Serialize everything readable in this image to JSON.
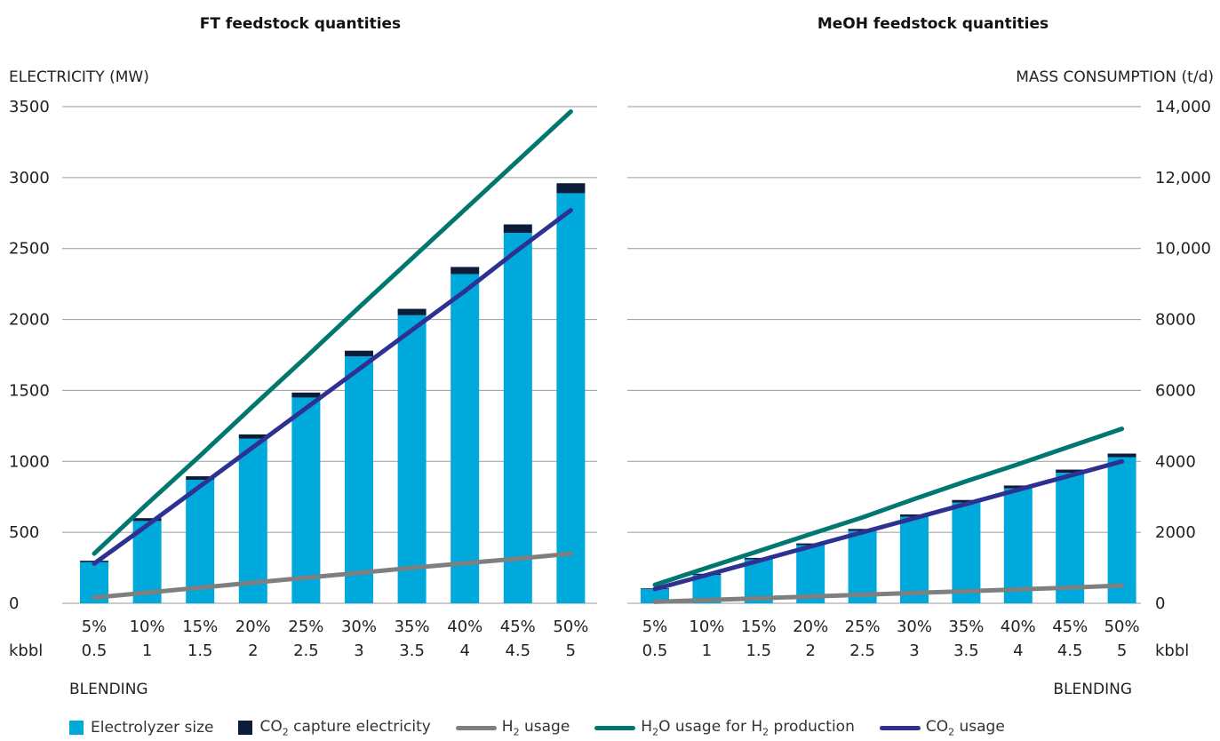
{
  "colors": {
    "electrolyzer": "#00A9DC",
    "co2_capture": "#0B1D3A",
    "h2_usage": "#7F7F7F",
    "h2o_usage": "#00776F",
    "co2_usage": "#2E3192",
    "grid": "#9A9A9A"
  },
  "left_axis_title": "ELECTRICITY  (MW)",
  "right_axis_title": "MASS CONSUMPTION (t/d)",
  "row_label_kbbl": "kbbl",
  "blending_label": "BLENDING",
  "left_ticks": [
    "0",
    "500",
    "1000",
    "1500",
    "2000",
    "2500",
    "3000",
    "3500"
  ],
  "right_ticks": [
    "0",
    "2000",
    "4000",
    "6000",
    "8000",
    "10,000",
    "12,000",
    "14,000"
  ],
  "legend": [
    {
      "id": "electrolyzer",
      "kind": "box",
      "parts": [
        "Electrolyzer size"
      ]
    },
    {
      "id": "co2_capture",
      "kind": "box",
      "parts": [
        "CO",
        "2",
        " capture electricity"
      ]
    },
    {
      "id": "h2_usage",
      "kind": "line",
      "parts": [
        "H",
        "2",
        " usage"
      ]
    },
    {
      "id": "h2o_usage",
      "kind": "line",
      "parts": [
        "H",
        "2",
        "O usage for H",
        "2",
        " production"
      ]
    },
    {
      "id": "co2_usage",
      "kind": "line",
      "parts": [
        "CO",
        "2",
        " usage"
      ]
    }
  ],
  "chart_data": [
    {
      "type": "bar",
      "title": "FT feedstock quantities",
      "ylabel": "ELECTRICITY  (MW)",
      "y2label": "MASS CONSUMPTION (t/d)",
      "xlabel": "BLENDING",
      "categories": [
        "5%",
        "10%",
        "15%",
        "20%",
        "25%",
        "30%",
        "35%",
        "40%",
        "45%",
        "50%"
      ],
      "kbbl": [
        "0.5",
        "1",
        "1.5",
        "2",
        "2.5",
        "3",
        "3.5",
        "4",
        "4.5",
        "5"
      ],
      "ylim": [
        0,
        3500
      ],
      "y2lim": [
        0,
        14000
      ],
      "stacked": true,
      "series": [
        {
          "name": "Electrolyzer size",
          "axis": "left",
          "kind": "bar",
          "values": [
            290,
            580,
            870,
            1160,
            1450,
            1740,
            2030,
            2320,
            2610,
            2890
          ]
        },
        {
          "name": "CO2 capture electricity",
          "axis": "left",
          "kind": "bar",
          "values": [
            10,
            20,
            25,
            30,
            35,
            40,
            45,
            50,
            60,
            70
          ]
        },
        {
          "name": "H2 usage",
          "axis": "right",
          "kind": "line",
          "values": [
            160,
            300,
            440,
            580,
            720,
            860,
            1000,
            1130,
            1260,
            1400
          ]
        },
        {
          "name": "H2O usage for H2 production",
          "axis": "right",
          "kind": "line",
          "values": [
            1400,
            2800,
            4160,
            5560,
            6940,
            8340,
            9720,
            11100,
            12480,
            13860
          ]
        },
        {
          "name": "CO2 usage",
          "axis": "right",
          "kind": "line",
          "values": [
            1120,
            2200,
            3300,
            4400,
            5500,
            6600,
            7700,
            8800,
            9960,
            11080
          ]
        }
      ],
      "grid": true
    },
    {
      "type": "bar",
      "title": "MeOH feedstock quantities",
      "ylabel": "ELECTRICITY  (MW)",
      "y2label": "MASS CONSUMPTION (t/d)",
      "xlabel": "BLENDING",
      "categories": [
        "5%",
        "10%",
        "15%",
        "20%",
        "25%",
        "30%",
        "35%",
        "40%",
        "45%",
        "50%"
      ],
      "kbbl": [
        "0.5",
        "1",
        "1.5",
        "2",
        "2.5",
        "3",
        "3.5",
        "4",
        "4.5",
        "5"
      ],
      "ylim": [
        0,
        3500
      ],
      "y2lim": [
        0,
        14000
      ],
      "stacked": true,
      "series": [
        {
          "name": "Electrolyzer size",
          "axis": "left",
          "kind": "bar",
          "values": [
            100,
            200,
            310,
            410,
            510,
            610,
            710,
            810,
            920,
            1030
          ]
        },
        {
          "name": "CO2 capture electricity",
          "axis": "left",
          "kind": "bar",
          "values": [
            5,
            8,
            10,
            12,
            14,
            16,
            18,
            20,
            22,
            25
          ]
        },
        {
          "name": "H2 usage",
          "axis": "right",
          "kind": "line",
          "values": [
            40,
            90,
            140,
            190,
            240,
            290,
            340,
            390,
            440,
            500
          ]
        },
        {
          "name": "H2O usage for H2 production",
          "axis": "right",
          "kind": "line",
          "values": [
            520,
            1000,
            1470,
            1950,
            2420,
            2940,
            3440,
            3920,
            4420,
            4920
          ]
        },
        {
          "name": "CO2 usage",
          "axis": "right",
          "kind": "line",
          "values": [
            400,
            800,
            1200,
            1600,
            2000,
            2400,
            2800,
            3200,
            3600,
            4000
          ]
        }
      ],
      "grid": true
    }
  ]
}
